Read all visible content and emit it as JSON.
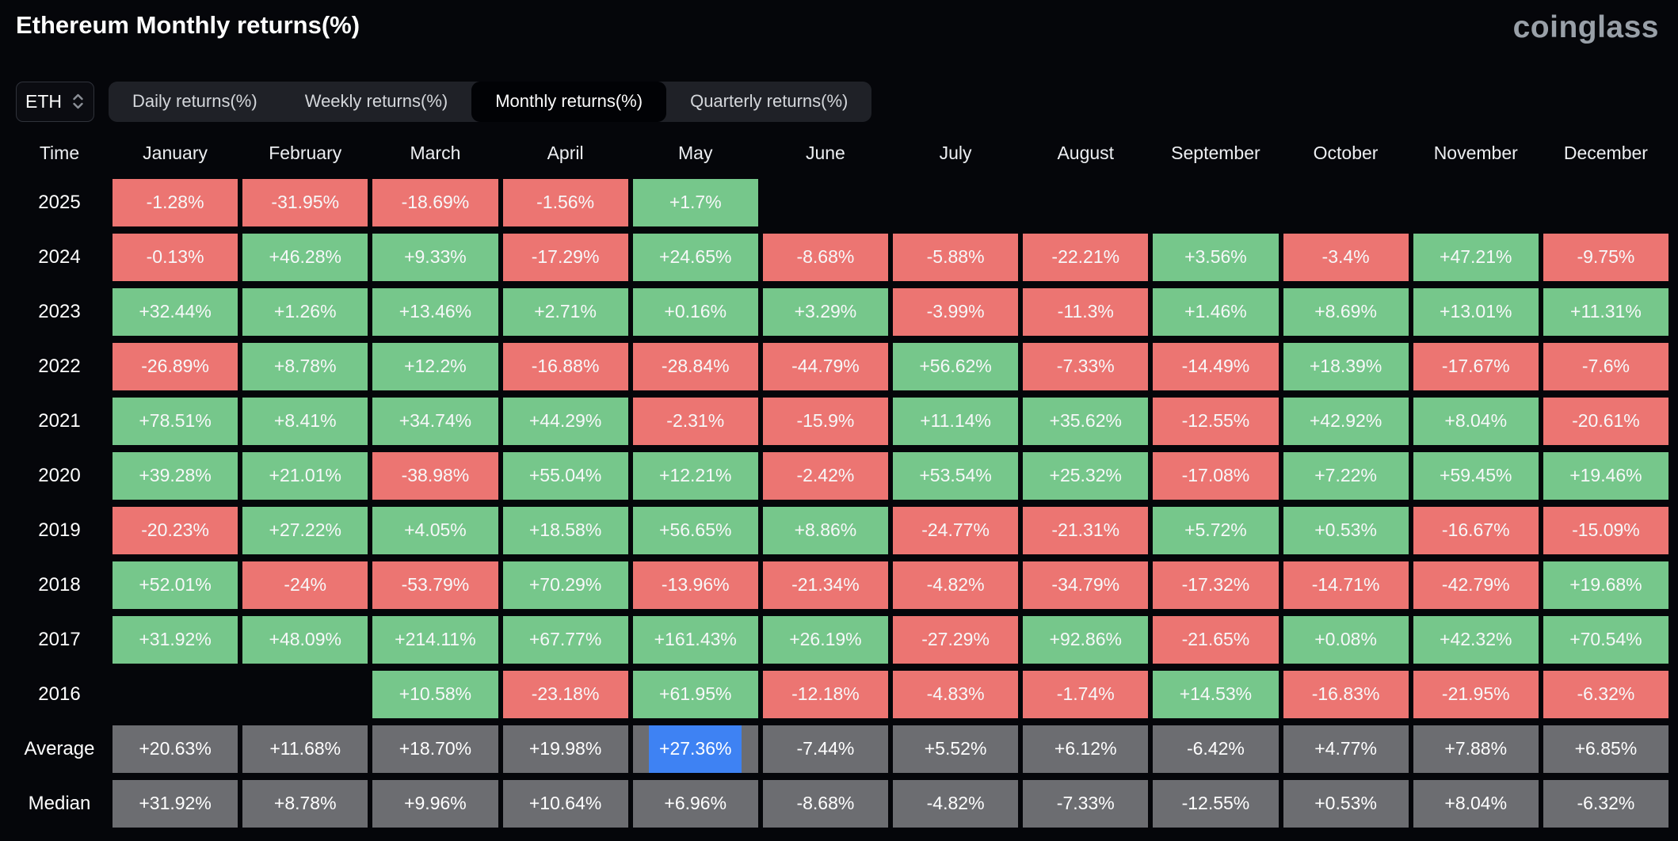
{
  "page": {
    "title": "Ethereum Monthly returns(%)",
    "brand": "coinglass"
  },
  "controls": {
    "symbol_select": {
      "value": "ETH"
    },
    "tabs": [
      {
        "label": "Daily returns(%)",
        "selected": false
      },
      {
        "label": "Weekly returns(%)",
        "selected": false
      },
      {
        "label": "Monthly returns(%)",
        "selected": true
      },
      {
        "label": "Quarterly returns(%)",
        "selected": false
      }
    ]
  },
  "table": {
    "time_header": "Time",
    "months": [
      "January",
      "February",
      "March",
      "April",
      "May",
      "June",
      "July",
      "August",
      "September",
      "October",
      "November",
      "December"
    ],
    "month_keys": [
      "january",
      "february",
      "march",
      "april",
      "may",
      "june",
      "july",
      "august",
      "september",
      "october",
      "november",
      "december"
    ],
    "rows": [
      {
        "label": "2025",
        "type": "year",
        "cells": [
          "-1.28%",
          "-31.95%",
          "-18.69%",
          "-1.56%",
          "+1.7%",
          "",
          "",
          "",
          "",
          "",
          "",
          ""
        ]
      },
      {
        "label": "2024",
        "type": "year",
        "cells": [
          "-0.13%",
          "+46.28%",
          "+9.33%",
          "-17.29%",
          "+24.65%",
          "-8.68%",
          "-5.88%",
          "-22.21%",
          "+3.56%",
          "-3.4%",
          "+47.21%",
          "-9.75%"
        ]
      },
      {
        "label": "2023",
        "type": "year",
        "cells": [
          "+32.44%",
          "+1.26%",
          "+13.46%",
          "+2.71%",
          "+0.16%",
          "+3.29%",
          "-3.99%",
          "-11.3%",
          "+1.46%",
          "+8.69%",
          "+13.01%",
          "+11.31%"
        ]
      },
      {
        "label": "2022",
        "type": "year",
        "cells": [
          "-26.89%",
          "+8.78%",
          "+12.2%",
          "-16.88%",
          "-28.84%",
          "-44.79%",
          "+56.62%",
          "-7.33%",
          "-14.49%",
          "+18.39%",
          "-17.67%",
          "-7.6%"
        ]
      },
      {
        "label": "2021",
        "type": "year",
        "cells": [
          "+78.51%",
          "+8.41%",
          "+34.74%",
          "+44.29%",
          "-2.31%",
          "-15.9%",
          "+11.14%",
          "+35.62%",
          "-12.55%",
          "+42.92%",
          "+8.04%",
          "-20.61%"
        ]
      },
      {
        "label": "2020",
        "type": "year",
        "cells": [
          "+39.28%",
          "+21.01%",
          "-38.98%",
          "+55.04%",
          "+12.21%",
          "-2.42%",
          "+53.54%",
          "+25.32%",
          "-17.08%",
          "+7.22%",
          "+59.45%",
          "+19.46%"
        ]
      },
      {
        "label": "2019",
        "type": "year",
        "cells": [
          "-20.23%",
          "+27.22%",
          "+4.05%",
          "+18.58%",
          "+56.65%",
          "+8.86%",
          "-24.77%",
          "-21.31%",
          "+5.72%",
          "+0.53%",
          "-16.67%",
          "-15.09%"
        ]
      },
      {
        "label": "2018",
        "type": "year",
        "cells": [
          "+52.01%",
          "-24%",
          "-53.79%",
          "+70.29%",
          "-13.96%",
          "-21.34%",
          "-4.82%",
          "-34.79%",
          "-17.32%",
          "-14.71%",
          "-42.79%",
          "+19.68%"
        ]
      },
      {
        "label": "2017",
        "type": "year",
        "cells": [
          "+31.92%",
          "+48.09%",
          "+214.11%",
          "+67.77%",
          "+161.43%",
          "+26.19%",
          "-27.29%",
          "+92.86%",
          "-21.65%",
          "+0.08%",
          "+42.32%",
          "+70.54%"
        ]
      },
      {
        "label": "2016",
        "type": "year",
        "cells": [
          "",
          "",
          "+10.58%",
          "-23.18%",
          "+61.95%",
          "-12.18%",
          "-4.83%",
          "-1.74%",
          "+14.53%",
          "-16.83%",
          "-21.95%",
          "-6.32%"
        ]
      },
      {
        "label": "Average",
        "type": "summary",
        "cells": [
          "+20.63%",
          "+11.68%",
          "+18.70%",
          "+19.98%",
          "+27.36%",
          "-7.44%",
          "+5.52%",
          "+6.12%",
          "-6.42%",
          "+4.77%",
          "+7.88%",
          "+6.85%"
        ]
      },
      {
        "label": "Median",
        "type": "summary",
        "cells": [
          "+31.92%",
          "+8.78%",
          "+9.96%",
          "+10.64%",
          "+6.96%",
          "-8.68%",
          "-4.82%",
          "-7.33%",
          "-12.55%",
          "+0.53%",
          "+8.04%",
          "-6.32%"
        ]
      }
    ],
    "highlight": {
      "row_label": "Average",
      "month": "May",
      "col_index": 4,
      "value": "+27.36%"
    }
  },
  "colors": {
    "background": "#05060a",
    "positive": "#76c78b",
    "negative": "#ec7572",
    "summary": "#6c6d71",
    "highlight": "#3e82f3",
    "brand_gray": "#99a0a8"
  },
  "chart_data": {
    "type": "heatmap",
    "title": "Ethereum Monthly returns(%)",
    "x_categories": [
      "January",
      "February",
      "March",
      "April",
      "May",
      "June",
      "July",
      "August",
      "September",
      "October",
      "November",
      "December"
    ],
    "y_categories": [
      "2025",
      "2024",
      "2023",
      "2022",
      "2021",
      "2020",
      "2019",
      "2018",
      "2017",
      "2016",
      "Average",
      "Median"
    ],
    "values_pct": [
      [
        -1.28,
        -31.95,
        -18.69,
        -1.56,
        1.7,
        null,
        null,
        null,
        null,
        null,
        null,
        null
      ],
      [
        -0.13,
        46.28,
        9.33,
        -17.29,
        24.65,
        -8.68,
        -5.88,
        -22.21,
        3.56,
        -3.4,
        47.21,
        -9.75
      ],
      [
        32.44,
        1.26,
        13.46,
        2.71,
        0.16,
        3.29,
        -3.99,
        -11.3,
        1.46,
        8.69,
        13.01,
        11.31
      ],
      [
        -26.89,
        8.78,
        12.2,
        -16.88,
        -28.84,
        -44.79,
        56.62,
        -7.33,
        -14.49,
        18.39,
        -17.67,
        -7.6
      ],
      [
        78.51,
        8.41,
        34.74,
        44.29,
        -2.31,
        -15.9,
        11.14,
        35.62,
        -12.55,
        42.92,
        8.04,
        -20.61
      ],
      [
        39.28,
        21.01,
        -38.98,
        55.04,
        12.21,
        -2.42,
        53.54,
        25.32,
        -17.08,
        7.22,
        59.45,
        19.46
      ],
      [
        -20.23,
        27.22,
        4.05,
        18.58,
        56.65,
        8.86,
        -24.77,
        -21.31,
        5.72,
        0.53,
        -16.67,
        -15.09
      ],
      [
        52.01,
        -24,
        -53.79,
        70.29,
        -13.96,
        -21.34,
        -4.82,
        -34.79,
        -17.32,
        -14.71,
        -42.79,
        19.68
      ],
      [
        31.92,
        48.09,
        214.11,
        67.77,
        161.43,
        26.19,
        -27.29,
        92.86,
        -21.65,
        0.08,
        42.32,
        70.54
      ],
      [
        null,
        null,
        10.58,
        -23.18,
        61.95,
        -12.18,
        -4.83,
        -1.74,
        14.53,
        -16.83,
        -21.95,
        -6.32
      ],
      [
        20.63,
        11.68,
        18.7,
        19.98,
        27.36,
        -7.44,
        5.52,
        6.12,
        -6.42,
        4.77,
        7.88,
        6.85
      ],
      [
        31.92,
        8.78,
        9.96,
        10.64,
        6.96,
        -8.68,
        -4.82,
        -7.33,
        -12.55,
        0.53,
        8.04,
        -6.32
      ]
    ],
    "legend": "green = positive monthly return, red = negative monthly return, gray = summary rows, blue = selected cell (Average/May)"
  }
}
